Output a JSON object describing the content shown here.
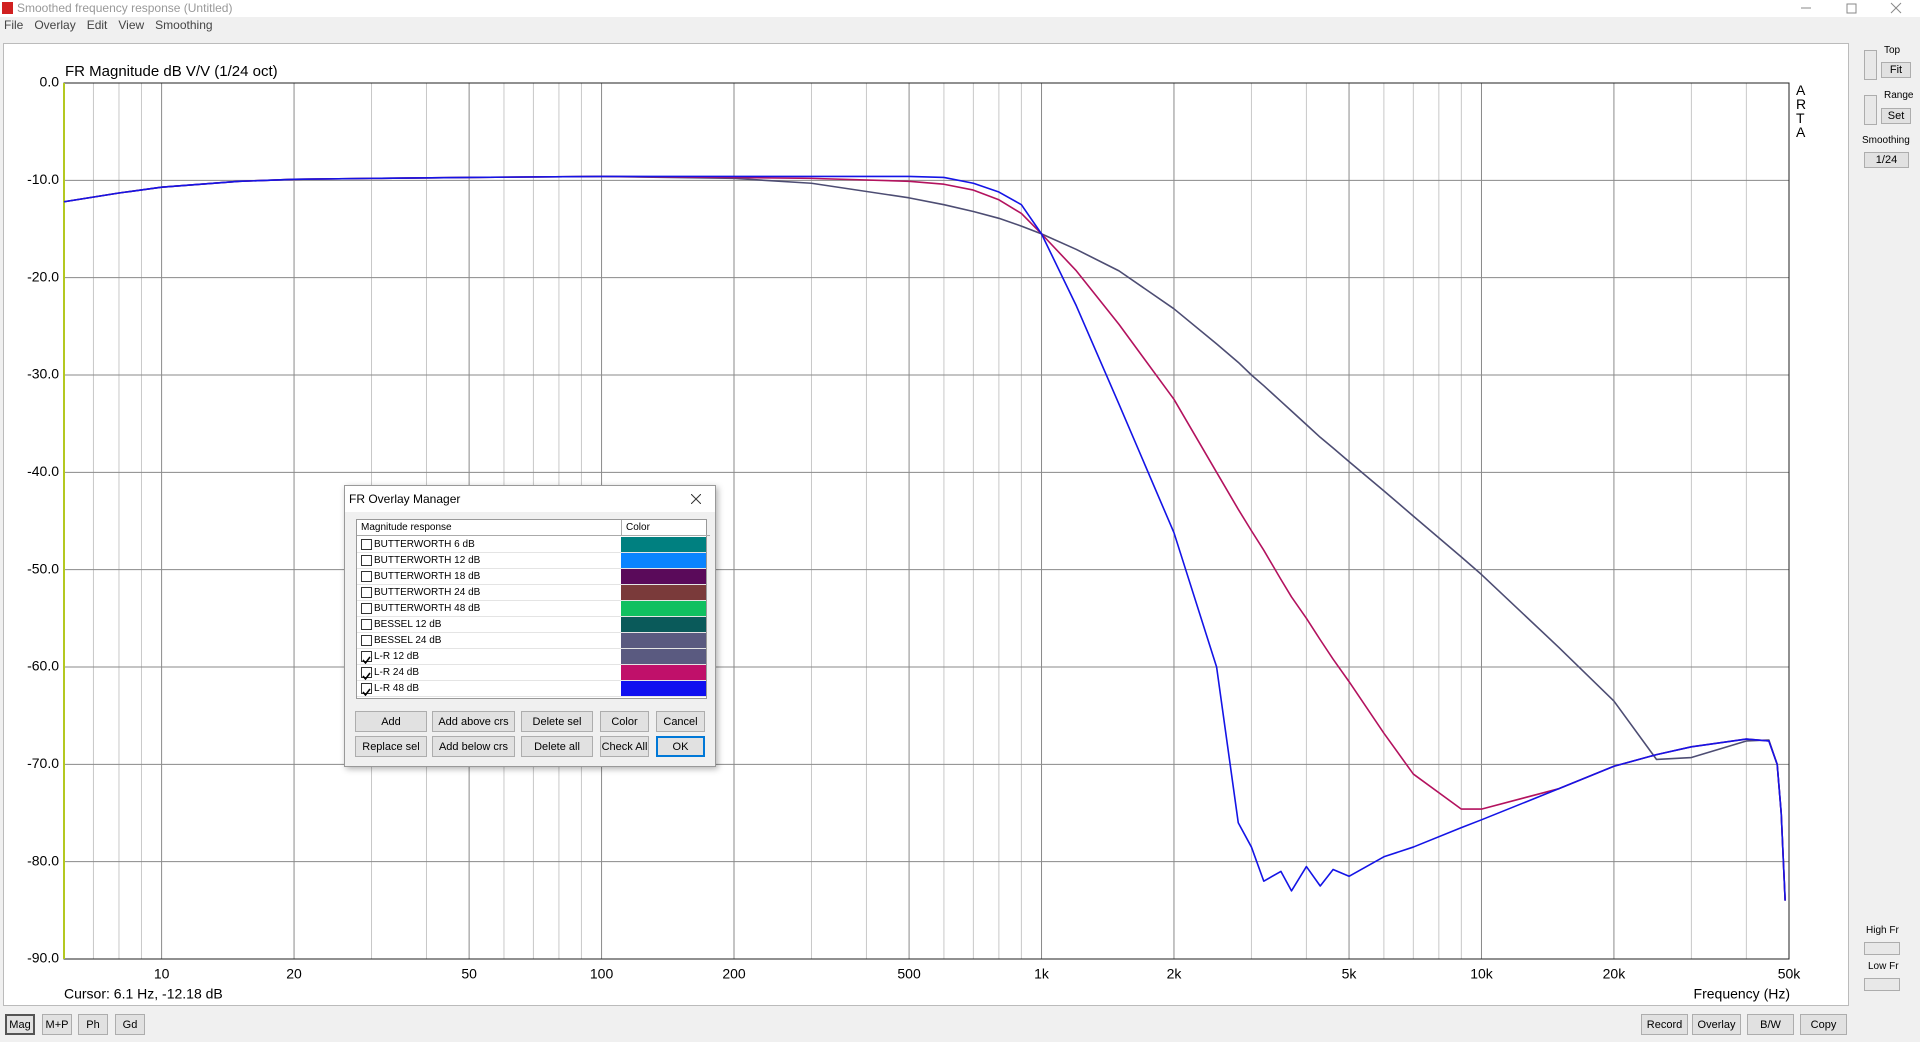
{
  "window": {
    "title": "Smoothed frequency response (Untitled)",
    "menu": [
      "File",
      "Overlay",
      "Edit",
      "View",
      "Smoothing"
    ]
  },
  "chart_data": {
    "type": "line",
    "title": "FR Magnitude dB V/V (1/24 oct)",
    "xlabel": "Frequency (Hz)",
    "xscale": "log",
    "grid": true,
    "xlim": [
      6,
      50000
    ],
    "xticks": [
      10,
      20,
      50,
      100,
      200,
      500,
      {
        "value": 1000,
        "label": "1k"
      },
      {
        "value": 2000,
        "label": "2k"
      },
      {
        "value": 5000,
        "label": "5k"
      },
      {
        "value": 10000,
        "label": "10k"
      },
      {
        "value": 20000,
        "label": "20k"
      },
      {
        "value": 50000,
        "label": "50k"
      }
    ],
    "xminor": [
      7,
      8,
      9,
      30,
      40,
      60,
      70,
      80,
      90,
      300,
      400,
      600,
      700,
      800,
      900,
      3000,
      4000,
      6000,
      7000,
      8000,
      9000,
      30000,
      40000
    ],
    "ylim": [
      -90,
      0
    ],
    "yticks": [
      {
        "value": 0,
        "label": "0.0"
      },
      {
        "value": -10,
        "label": "-10.0"
      },
      {
        "value": -20,
        "label": "-20.0"
      },
      {
        "value": -30,
        "label": "-30.0"
      },
      {
        "value": -40,
        "label": "-40.0"
      },
      {
        "value": -50,
        "label": "-50.0"
      },
      {
        "value": -60,
        "label": "-60.0"
      },
      {
        "value": -70,
        "label": "-70.0"
      },
      {
        "value": -80,
        "label": "-80.0"
      },
      {
        "value": -90,
        "label": "-90.0"
      }
    ],
    "x": [
      6,
      8,
      10,
      15,
      20,
      30,
      50,
      100,
      200,
      300,
      500,
      600,
      700,
      800,
      900,
      1000,
      1200,
      1500,
      2000,
      2500,
      2800,
      3000,
      3200,
      3500,
      3700,
      4000,
      4300,
      4600,
      5000,
      6000,
      7000,
      9000,
      10000,
      15000,
      20000,
      25000,
      30000,
      40000,
      45000,
      47000,
      48000,
      49000
    ],
    "series": [
      {
        "color": "#4d4d73",
        "values": [
          -12.2,
          -11.3,
          -10.7,
          -10.1,
          -9.9,
          -9.8,
          -9.7,
          -9.6,
          -9.8,
          -10.3,
          -11.8,
          -12.5,
          -13.2,
          -13.9,
          -14.7,
          -15.5,
          -17.1,
          -19.3,
          -23.2,
          -26.8,
          -28.7,
          -30,
          -31.1,
          -32.7,
          -33.7,
          -35.1,
          -36.4,
          -37.5,
          -38.9,
          -41.9,
          -44.5,
          -48.7,
          -50.5,
          -58,
          -63.5,
          -69.5,
          -69.3,
          -67.6,
          -67.5,
          -70,
          -75,
          -84
        ]
      },
      {
        "color": "#b3125e",
        "values": [
          -12.2,
          -11.3,
          -10.7,
          -10.1,
          -9.9,
          -9.8,
          -9.7,
          -9.6,
          -9.7,
          -9.8,
          -10.1,
          -10.4,
          -11,
          -12,
          -13.4,
          -15.5,
          -19.3,
          -24.8,
          -32.5,
          -40,
          -43.8,
          -46,
          -48,
          -51,
          -52.8,
          -55,
          -57.2,
          -59.2,
          -61.5,
          -66.8,
          -71,
          -74.6,
          -74.6,
          -72.5,
          -70.2,
          -69,
          -68.2,
          -67.4,
          -67.6,
          -70,
          -75,
          -84
        ]
      },
      {
        "color": "#1414e6",
        "values": [
          -12.2,
          -11.3,
          -10.7,
          -10.1,
          -9.9,
          -9.8,
          -9.7,
          -9.6,
          -9.6,
          -9.6,
          -9.6,
          -9.7,
          -10.3,
          -11.2,
          -12.5,
          -15.5,
          -22.9,
          -33,
          -46.2,
          -60,
          -76,
          -78.5,
          -82,
          -81,
          -83,
          -80.5,
          -82.5,
          -80.8,
          -81.5,
          -79.5,
          -78.5,
          -76.5,
          -75.7,
          -72.5,
          -70.2,
          -69,
          -68.2,
          -67.4,
          -67.6,
          -70,
          -75,
          -84
        ]
      }
    ]
  },
  "brand": "ARTA",
  "status": {
    "cursor": "Cursor: 6.1 Hz, -12.18 dB"
  },
  "side_panel": {
    "top": "Top",
    "fit": "Fit",
    "range": "Range",
    "set": "Set",
    "smoothing": "Smoothing",
    "smoothing_value": "1/24",
    "high_fr": "High Fr",
    "low_fr": "Low Fr"
  },
  "bottom_left": [
    "Mag",
    "M+P",
    "Ph",
    "Gd"
  ],
  "bottom_right": [
    "Record",
    "Overlay",
    "B/W",
    "Copy"
  ],
  "dialog": {
    "title": "FR Overlay Manager",
    "columns": [
      "Magnitude response",
      "Color"
    ],
    "rows": [
      {
        "name": "BUTTERWORTH 6 dB",
        "checked": false,
        "color": "#008080"
      },
      {
        "name": "BUTTERWORTH 12 dB",
        "checked": false,
        "color": "#0a84ff"
      },
      {
        "name": "BUTTERWORTH 18 dB",
        "checked": false,
        "color": "#5a0a5a"
      },
      {
        "name": "BUTTERWORTH 24 dB",
        "checked": false,
        "color": "#7a3a3a"
      },
      {
        "name": "BUTTERWORTH 48 dB",
        "checked": false,
        "color": "#10c060"
      },
      {
        "name": "BESSEL 12 dB",
        "checked": false,
        "color": "#0a5a5a"
      },
      {
        "name": "BESSEL 24 dB",
        "checked": false,
        "color": "#5a5a80"
      },
      {
        "name": "L-R 12 dB",
        "checked": true,
        "color": "#5a5a80"
      },
      {
        "name": "L-R 24 dB",
        "checked": true,
        "color": "#c0106a"
      },
      {
        "name": "L-R 48 dB",
        "checked": true,
        "color": "#1010f0"
      }
    ],
    "buttons": [
      [
        "Add",
        "Add above crs",
        "Delete sel",
        "Color",
        "Cancel"
      ],
      [
        "Replace sel",
        "Add below crs",
        "Delete all",
        "Check All",
        "OK"
      ]
    ]
  }
}
